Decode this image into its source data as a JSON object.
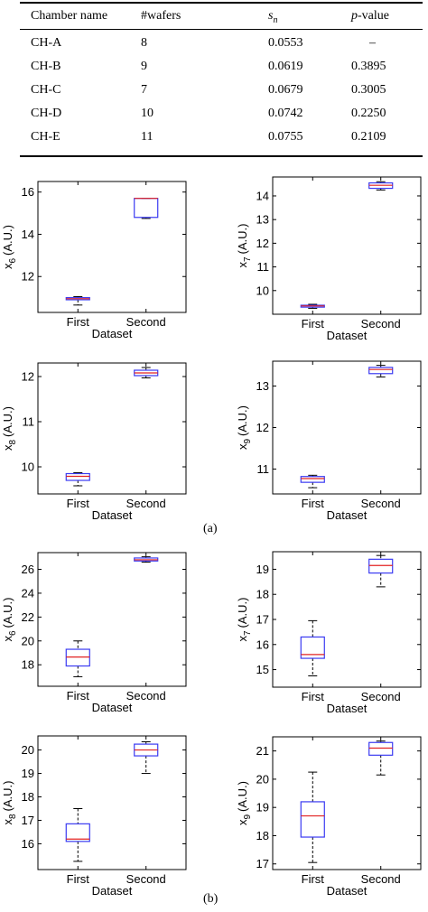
{
  "table": {
    "headers": [
      "Chamber name",
      "#wafers",
      "s",
      "n",
      "p",
      "-value"
    ],
    "rows": [
      [
        "CH-A",
        "8",
        "0.0553",
        "–"
      ],
      [
        "CH-B",
        "9",
        "0.0619",
        "0.3895"
      ],
      [
        "CH-C",
        "7",
        "0.0679",
        "0.3005"
      ],
      [
        "CH-D",
        "10",
        "0.0742",
        "0.2250"
      ],
      [
        "CH-E",
        "11",
        "0.0755",
        "0.2109"
      ]
    ]
  },
  "captions": [
    "(a)",
    "(b)"
  ],
  "colors": {
    "box": "#3a3af2",
    "median": "#e22222",
    "whisker": "#000000"
  },
  "chart_data": [
    {
      "type": "box",
      "panel": "(a)",
      "ylabel_var": "x",
      "ylabel_sub": "6",
      "ylabel_unit": "(A.U.)",
      "xlabel": "Dataset",
      "categories": [
        "First",
        "Second"
      ],
      "ylim": [
        10.3,
        16.5
      ],
      "yticks": [
        12,
        14,
        16
      ],
      "boxes": [
        {
          "low": 10.65,
          "q1": 10.9,
          "median": 10.95,
          "q3": 11.0,
          "high": 11.05
        },
        {
          "low": 14.75,
          "q1": 14.8,
          "median": 15.7,
          "q3": 15.7,
          "high": 15.7
        }
      ]
    },
    {
      "type": "box",
      "panel": "(a)",
      "ylabel_var": "x",
      "ylabel_sub": "7",
      "ylabel_unit": "(A.U.)",
      "xlabel": "Dataset",
      "categories": [
        "First",
        "Second"
      ],
      "ylim": [
        9.0,
        14.8
      ],
      "yticks": [
        10,
        11,
        12,
        13,
        14
      ],
      "boxes": [
        {
          "low": 9.25,
          "q1": 9.3,
          "median": 9.35,
          "q3": 9.38,
          "high": 9.42
        },
        {
          "low": 14.25,
          "q1": 14.32,
          "median": 14.45,
          "q3": 14.55,
          "high": 14.6
        }
      ]
    },
    {
      "type": "box",
      "panel": "(a)",
      "ylabel_var": "x",
      "ylabel_sub": "8",
      "ylabel_unit": "(A.U.)",
      "xlabel": "Dataset",
      "categories": [
        "First",
        "Second"
      ],
      "ylim": [
        9.4,
        12.3
      ],
      "yticks": [
        10,
        11,
        12
      ],
      "boxes": [
        {
          "low": 9.58,
          "q1": 9.7,
          "median": 9.79,
          "q3": 9.85,
          "high": 9.87
        },
        {
          "low": 11.97,
          "q1": 12.02,
          "median": 12.08,
          "q3": 12.14,
          "high": 12.2
        }
      ]
    },
    {
      "type": "box",
      "panel": "(a)",
      "ylabel_var": "x",
      "ylabel_sub": "9",
      "ylabel_unit": "(A.U.)",
      "xlabel": "Dataset",
      "categories": [
        "First",
        "Second"
      ],
      "ylim": [
        10.4,
        13.6
      ],
      "yticks": [
        11,
        12,
        13
      ],
      "boxes": [
        {
          "low": 10.55,
          "q1": 10.68,
          "median": 10.77,
          "q3": 10.82,
          "high": 10.85
        },
        {
          "low": 13.22,
          "q1": 13.3,
          "median": 13.4,
          "q3": 13.45,
          "high": 13.5
        }
      ]
    },
    {
      "type": "box",
      "panel": "(b)",
      "ylabel_var": "x",
      "ylabel_sub": "6",
      "ylabel_unit": "(A.U.)",
      "xlabel": "Dataset",
      "categories": [
        "First",
        "Second"
      ],
      "ylim": [
        16.2,
        27.4
      ],
      "yticks": [
        18,
        20,
        22,
        24,
        26
      ],
      "boxes": [
        {
          "low": 17.0,
          "q1": 17.9,
          "median": 18.65,
          "q3": 19.3,
          "high": 20.0
        },
        {
          "low": 26.6,
          "q1": 26.7,
          "median": 26.8,
          "q3": 26.95,
          "high": 27.05
        }
      ]
    },
    {
      "type": "box",
      "panel": "(b)",
      "ylabel_var": "x",
      "ylabel_sub": "7",
      "ylabel_unit": "(A.U.)",
      "xlabel": "Dataset",
      "categories": [
        "First",
        "Second"
      ],
      "ylim": [
        14.3,
        19.7
      ],
      "yticks": [
        15,
        16,
        17,
        18,
        19
      ],
      "boxes": [
        {
          "low": 14.75,
          "q1": 15.45,
          "median": 15.6,
          "q3": 16.3,
          "high": 16.95
        },
        {
          "low": 18.3,
          "q1": 18.85,
          "median": 19.15,
          "q3": 19.4,
          "high": 19.55
        }
      ]
    },
    {
      "type": "box",
      "panel": "(b)",
      "ylabel_var": "x",
      "ylabel_sub": "8",
      "ylabel_unit": "(A.U.)",
      "xlabel": "Dataset",
      "categories": [
        "First",
        "Second"
      ],
      "ylim": [
        14.9,
        20.6
      ],
      "yticks": [
        16,
        17,
        18,
        19,
        20
      ],
      "boxes": [
        {
          "low": 15.25,
          "q1": 16.1,
          "median": 16.2,
          "q3": 16.85,
          "high": 17.5
        },
        {
          "low": 19.0,
          "q1": 19.75,
          "median": 20.0,
          "q3": 20.25,
          "high": 20.35
        }
      ]
    },
    {
      "type": "box",
      "panel": "(b)",
      "ylabel_var": "x",
      "ylabel_sub": "9",
      "ylabel_unit": "(A.U.)",
      "xlabel": "Dataset",
      "categories": [
        "First",
        "Second"
      ],
      "ylim": [
        16.8,
        21.5
      ],
      "yticks": [
        17,
        18,
        19,
        20,
        21
      ],
      "boxes": [
        {
          "low": 17.05,
          "q1": 17.95,
          "median": 18.7,
          "q3": 19.2,
          "high": 20.25
        },
        {
          "low": 20.15,
          "q1": 20.85,
          "median": 21.1,
          "q3": 21.3,
          "high": 21.35
        }
      ]
    }
  ]
}
